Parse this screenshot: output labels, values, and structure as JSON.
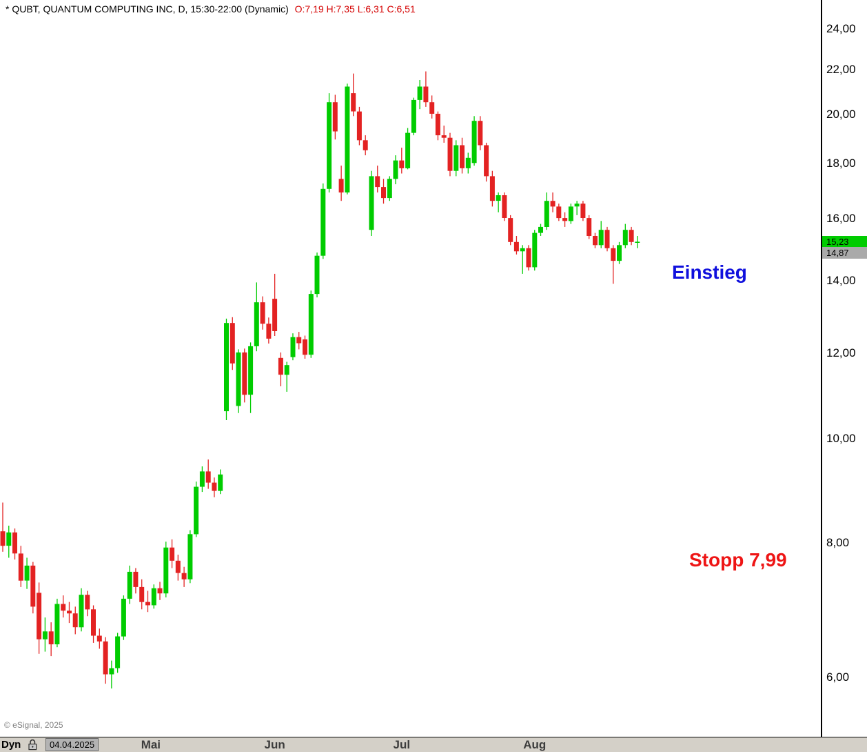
{
  "header": {
    "symbol_info": "* QUBT, QUANTUM COMPUTING INC, D, 15:30-22:00 (Dynamic)",
    "ohlc": "O:7,19 H:7,35 L:6,31 C:6,51"
  },
  "colors": {
    "up": "#00cc00",
    "down": "#e32222",
    "ohlc_text": "#d40000",
    "entry_text": "#1010dd",
    "stop_text": "#ee1515",
    "last_badge_bg": "#00cc00",
    "ref_badge_bg": "#aaaaaa"
  },
  "annotations": {
    "entry": {
      "text": "Einstieg",
      "color": "#1010dd",
      "price_level": 14.2
    },
    "stop": {
      "text": "Stopp 7,99",
      "color": "#ee1515",
      "price_level": 7.99
    }
  },
  "price_badges": [
    {
      "name": "last-price-badge",
      "value": "15,23",
      "price": 15.23,
      "bg": "#00cc00",
      "fg": "#000000"
    },
    {
      "name": "reference-price-badge",
      "value": "14,87",
      "price": 14.87,
      "bg": "#aaaaaa",
      "fg": "#000000"
    }
  ],
  "footer": {
    "copyright": "© eSignal, 2025",
    "mode_label": "Dyn",
    "date_value": "04.04.2025"
  },
  "chart_data": {
    "type": "candlestick",
    "title": "QUBT, QUANTUM COMPUTING INC, Daily",
    "y_axis": {
      "scale": "log",
      "ticks": [
        "24,00",
        "22,00",
        "20,00",
        "18,00",
        "16,00",
        "14,00",
        "12,00",
        "10,00",
        "8,00",
        "6,00"
      ],
      "tick_values": [
        24,
        22,
        20,
        18,
        16,
        14,
        12,
        10,
        8,
        6
      ],
      "range": [
        5.6,
        24.6
      ]
    },
    "x_axis": {
      "months": [
        {
          "label": "Mai",
          "index": 24.5
        },
        {
          "label": "Jun",
          "index": 45
        },
        {
          "label": "Jul",
          "index": 66
        },
        {
          "label": "Aug",
          "index": 88
        }
      ]
    },
    "last_price": 15.23,
    "reference_price": 14.87,
    "candles": [
      [
        8.2,
        8.72,
        7.85,
        7.95
      ],
      [
        7.95,
        8.3,
        7.75,
        8.18
      ],
      [
        8.18,
        8.25,
        7.72,
        7.82
      ],
      [
        7.82,
        7.95,
        7.28,
        7.38
      ],
      [
        7.38,
        7.75,
        7.25,
        7.62
      ],
      [
        7.62,
        7.68,
        6.88,
        6.98
      ],
      [
        7.19,
        7.35,
        6.31,
        6.51
      ],
      [
        6.51,
        6.82,
        6.34,
        6.62
      ],
      [
        6.62,
        6.75,
        6.28,
        6.44
      ],
      [
        6.44,
        7.1,
        6.4,
        7.02
      ],
      [
        7.02,
        7.15,
        6.82,
        6.92
      ],
      [
        6.92,
        7.05,
        6.74,
        6.88
      ],
      [
        6.88,
        6.98,
        6.58,
        6.68
      ],
      [
        6.68,
        7.26,
        6.62,
        7.16
      ],
      [
        7.16,
        7.22,
        6.84,
        6.94
      ],
      [
        6.94,
        7.0,
        6.46,
        6.56
      ],
      [
        6.56,
        6.66,
        6.38,
        6.48
      ],
      [
        6.48,
        6.54,
        5.92,
        6.04
      ],
      [
        6.04,
        6.22,
        5.86,
        6.12
      ],
      [
        6.12,
        6.6,
        6.06,
        6.55
      ],
      [
        6.55,
        7.15,
        6.5,
        7.1
      ],
      [
        7.1,
        7.62,
        7.02,
        7.52
      ],
      [
        7.52,
        7.58,
        7.18,
        7.28
      ],
      [
        7.28,
        7.4,
        6.94,
        7.05
      ],
      [
        7.05,
        7.22,
        6.9,
        7.0
      ],
      [
        7.0,
        7.32,
        6.95,
        7.26
      ],
      [
        7.26,
        7.36,
        7.08,
        7.18
      ],
      [
        7.18,
        8.02,
        7.12,
        7.92
      ],
      [
        7.92,
        8.06,
        7.58,
        7.7
      ],
      [
        7.7,
        7.8,
        7.38,
        7.5
      ],
      [
        7.5,
        7.6,
        7.28,
        7.4
      ],
      [
        7.4,
        8.22,
        7.34,
        8.15
      ],
      [
        8.15,
        9.12,
        8.1,
        9.02
      ],
      [
        9.02,
        9.42,
        8.92,
        9.32
      ],
      [
        9.32,
        9.56,
        8.98,
        9.1
      ],
      [
        9.1,
        9.2,
        8.82,
        8.94
      ],
      [
        8.94,
        9.36,
        8.88,
        9.26
      ],
      [
        10.6,
        12.92,
        10.4,
        12.8
      ],
      [
        12.8,
        12.96,
        11.58,
        11.74
      ],
      [
        10.72,
        12.1,
        10.56,
        12.02
      ],
      [
        12.02,
        12.12,
        10.8,
        10.98
      ],
      [
        10.98,
        12.28,
        10.56,
        12.18
      ],
      [
        12.18,
        13.96,
        12.05,
        13.38
      ],
      [
        13.38,
        13.55,
        12.62,
        12.78
      ],
      [
        12.78,
        12.95,
        12.25,
        12.38
      ],
      [
        13.48,
        14.22,
        12.45,
        12.58
      ],
      [
        11.88,
        12.02,
        11.18,
        11.46
      ],
      [
        11.46,
        11.78,
        11.05,
        11.7
      ],
      [
        11.9,
        12.52,
        11.82,
        12.42
      ],
      [
        12.42,
        12.56,
        12.1,
        12.26
      ],
      [
        12.36,
        12.46,
        11.86,
        11.96
      ],
      [
        11.96,
        13.72,
        11.88,
        13.62
      ],
      [
        13.62,
        14.88,
        13.52,
        14.78
      ],
      [
        14.78,
        17.25,
        14.68,
        17.05
      ],
      [
        17.05,
        20.92,
        16.92,
        20.52
      ],
      [
        20.52,
        20.85,
        18.95,
        19.28
      ],
      [
        17.42,
        17.92,
        16.62,
        16.92
      ],
      [
        16.92,
        21.35,
        16.85,
        21.22
      ],
      [
        20.92,
        21.82,
        19.92,
        20.12
      ],
      [
        20.12,
        20.32,
        18.72,
        18.92
      ],
      [
        18.92,
        19.12,
        18.32,
        18.52
      ],
      [
        15.62,
        17.72,
        15.42,
        17.52
      ],
      [
        17.52,
        17.92,
        16.92,
        17.12
      ],
      [
        17.12,
        17.42,
        16.52,
        16.72
      ],
      [
        16.72,
        17.52,
        16.62,
        17.42
      ],
      [
        17.42,
        18.32,
        17.22,
        18.12
      ],
      [
        18.12,
        18.62,
        17.62,
        17.82
      ],
      [
        17.82,
        19.42,
        17.78,
        19.22
      ],
      [
        19.22,
        20.72,
        19.12,
        20.62
      ],
      [
        20.62,
        21.52,
        20.22,
        21.22
      ],
      [
        21.22,
        21.92,
        20.32,
        20.52
      ],
      [
        20.52,
        20.82,
        19.82,
        20.02
      ],
      [
        20.02,
        20.12,
        18.92,
        19.12
      ],
      [
        19.12,
        19.52,
        18.82,
        19.02
      ],
      [
        19.02,
        19.22,
        17.52,
        17.72
      ],
      [
        17.72,
        18.92,
        17.52,
        18.72
      ],
      [
        18.72,
        19.02,
        17.62,
        17.82
      ],
      [
        17.82,
        18.42,
        17.62,
        18.22
      ],
      [
        18.02,
        19.92,
        17.92,
        19.72
      ],
      [
        19.72,
        19.92,
        18.52,
        18.72
      ],
      [
        18.72,
        18.82,
        17.32,
        17.52
      ],
      [
        17.52,
        17.72,
        16.42,
        16.62
      ],
      [
        16.62,
        16.92,
        16.22,
        16.82
      ],
      [
        16.82,
        16.92,
        15.92,
        16.02
      ],
      [
        16.02,
        16.12,
        15.12,
        15.22
      ],
      [
        15.22,
        15.42,
        14.82,
        14.92
      ],
      [
        14.92,
        15.12,
        14.22,
        15.02
      ],
      [
        15.02,
        15.12,
        14.32,
        14.42
      ],
      [
        14.42,
        15.62,
        14.32,
        15.52
      ],
      [
        15.52,
        15.82,
        15.42,
        15.72
      ],
      [
        15.72,
        16.92,
        15.62,
        16.62
      ],
      [
        16.62,
        16.92,
        16.22,
        16.42
      ],
      [
        16.42,
        16.52,
        15.92,
        16.02
      ],
      [
        16.02,
        16.22,
        15.72,
        15.92
      ],
      [
        15.92,
        16.52,
        15.82,
        16.42
      ],
      [
        16.42,
        16.62,
        16.12,
        16.52
      ],
      [
        16.52,
        16.62,
        15.92,
        16.02
      ],
      [
        16.02,
        16.12,
        15.32,
        15.42
      ],
      [
        15.42,
        15.52,
        15.02,
        15.12
      ],
      [
        15.12,
        15.92,
        15.02,
        15.62
      ],
      [
        15.62,
        15.72,
        14.92,
        15.02
      ],
      [
        15.02,
        15.12,
        13.92,
        14.62
      ],
      [
        14.62,
        15.22,
        14.52,
        15.12
      ],
      [
        15.12,
        15.82,
        15.02,
        15.62
      ],
      [
        15.62,
        15.72,
        15.12,
        15.22
      ],
      [
        15.22,
        15.42,
        15.02,
        15.23
      ]
    ]
  }
}
